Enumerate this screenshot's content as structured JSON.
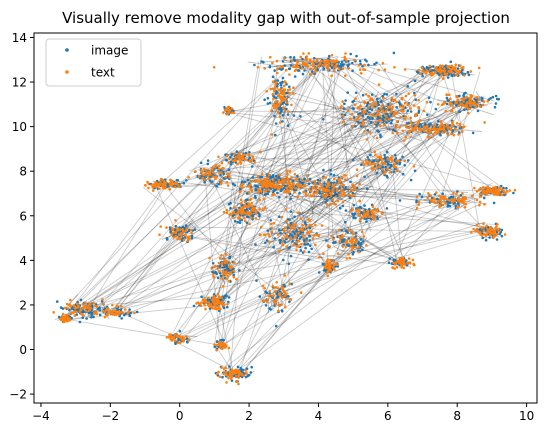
{
  "chart_data": {
    "type": "scatter",
    "title": "Visually remove modality gap with out-of-sample projection",
    "xlabel": "",
    "ylabel": "",
    "xlim": [
      -4.2,
      10.3
    ],
    "ylim": [
      -2.4,
      14.2
    ],
    "xticks": [
      -4,
      -2,
      0,
      2,
      4,
      6,
      8,
      10
    ],
    "yticks": [
      -2,
      0,
      2,
      4,
      6,
      8,
      10,
      12,
      14
    ],
    "grid": false,
    "legend": {
      "placement": "top-left"
    },
    "colors": {
      "image": "#1f77b4",
      "text": "#ff7f0e",
      "links": "#000000"
    },
    "series": [
      {
        "name": "image",
        "color": "#1f77b4"
      },
      {
        "name": "text",
        "color": "#ff7f0e"
      }
    ],
    "clusters": [
      {
        "x": 4.1,
        "y": 12.8,
        "spread_x": 1.4,
        "spread_y": 0.35,
        "weight": 14
      },
      {
        "x": 2.9,
        "y": 11.3,
        "spread_x": 0.3,
        "spread_y": 1.0,
        "weight": 7
      },
      {
        "x": 7.6,
        "y": 12.5,
        "spread_x": 0.7,
        "spread_y": 0.25,
        "weight": 8
      },
      {
        "x": 8.3,
        "y": 11.1,
        "spread_x": 0.7,
        "spread_y": 0.35,
        "weight": 8
      },
      {
        "x": 5.9,
        "y": 10.6,
        "spread_x": 1.1,
        "spread_y": 0.8,
        "weight": 14
      },
      {
        "x": 7.4,
        "y": 9.9,
        "spread_x": 0.8,
        "spread_y": 0.3,
        "weight": 8
      },
      {
        "x": 1.4,
        "y": 10.7,
        "spread_x": 0.15,
        "spread_y": 0.15,
        "weight": 2
      },
      {
        "x": 1.7,
        "y": 8.6,
        "spread_x": 0.4,
        "spread_y": 0.3,
        "weight": 4
      },
      {
        "x": 0.9,
        "y": 7.9,
        "spread_x": 0.5,
        "spread_y": 0.4,
        "weight": 6
      },
      {
        "x": -0.4,
        "y": 7.4,
        "spread_x": 0.45,
        "spread_y": 0.2,
        "weight": 6
      },
      {
        "x": 2.7,
        "y": 7.4,
        "spread_x": 1.0,
        "spread_y": 0.45,
        "weight": 14
      },
      {
        "x": 4.3,
        "y": 7.2,
        "spread_x": 0.7,
        "spread_y": 0.6,
        "weight": 10
      },
      {
        "x": 1.9,
        "y": 6.2,
        "spread_x": 0.5,
        "spread_y": 0.4,
        "weight": 7
      },
      {
        "x": 0.0,
        "y": 5.2,
        "spread_x": 0.35,
        "spread_y": 0.4,
        "weight": 5
      },
      {
        "x": 3.3,
        "y": 5.2,
        "spread_x": 0.8,
        "spread_y": 0.9,
        "weight": 9
      },
      {
        "x": 4.3,
        "y": 3.7,
        "spread_x": 0.2,
        "spread_y": 0.3,
        "weight": 4
      },
      {
        "x": 5.4,
        "y": 6.1,
        "spread_x": 0.5,
        "spread_y": 0.3,
        "weight": 6
      },
      {
        "x": 5.9,
        "y": 8.3,
        "spread_x": 0.6,
        "spread_y": 0.5,
        "weight": 7
      },
      {
        "x": 7.8,
        "y": 6.7,
        "spread_x": 0.8,
        "spread_y": 0.3,
        "weight": 7
      },
      {
        "x": 9.0,
        "y": 7.1,
        "spread_x": 0.4,
        "spread_y": 0.2,
        "weight": 5
      },
      {
        "x": 8.9,
        "y": 5.3,
        "spread_x": 0.35,
        "spread_y": 0.25,
        "weight": 5
      },
      {
        "x": 6.4,
        "y": 3.9,
        "spread_x": 0.25,
        "spread_y": 0.2,
        "weight": 4
      },
      {
        "x": 4.9,
        "y": 4.8,
        "spread_x": 0.5,
        "spread_y": 0.5,
        "weight": 5
      },
      {
        "x": 1.3,
        "y": 3.6,
        "spread_x": 0.3,
        "spread_y": 0.5,
        "weight": 5
      },
      {
        "x": 1.0,
        "y": 2.1,
        "spread_x": 0.35,
        "spread_y": 0.3,
        "weight": 6
      },
      {
        "x": 2.8,
        "y": 2.4,
        "spread_x": 0.4,
        "spread_y": 0.6,
        "weight": 5
      },
      {
        "x": -2.8,
        "y": 1.8,
        "spread_x": 0.5,
        "spread_y": 0.35,
        "weight": 6
      },
      {
        "x": -1.9,
        "y": 1.7,
        "spread_x": 0.5,
        "spread_y": 0.2,
        "weight": 4
      },
      {
        "x": -3.3,
        "y": 1.4,
        "spread_x": 0.2,
        "spread_y": 0.15,
        "weight": 3
      },
      {
        "x": 0.0,
        "y": 0.5,
        "spread_x": 0.3,
        "spread_y": 0.2,
        "weight": 3
      },
      {
        "x": 1.2,
        "y": 0.2,
        "spread_x": 0.15,
        "spread_y": 0.2,
        "weight": 3
      },
      {
        "x": 1.6,
        "y": -1.1,
        "spread_x": 0.4,
        "spread_y": 0.3,
        "weight": 5
      }
    ]
  }
}
